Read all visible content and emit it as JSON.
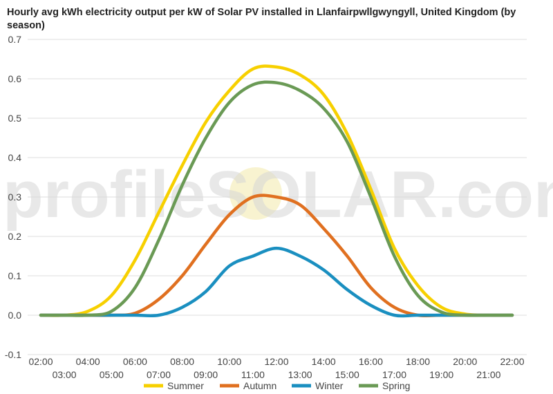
{
  "chart_data": {
    "type": "line",
    "title": "Hourly avg kWh electricity output per kW of Solar PV installed in Llanfairpwllgwyngyll, United Kingdom (by season)",
    "watermark": "profileSOLAR.com",
    "x": [
      "02:00",
      "03:00",
      "04:00",
      "05:00",
      "06:00",
      "07:00",
      "08:00",
      "09:00",
      "10:00",
      "11:00",
      "12:00",
      "13:00",
      "14:00",
      "15:00",
      "16:00",
      "17:00",
      "18:00",
      "19:00",
      "20:00",
      "21:00",
      "22:00"
    ],
    "xlabel": "",
    "ylabel": "",
    "ylim": [
      -0.1,
      0.7
    ],
    "yticks": [
      "-0.1",
      "0.0",
      "0.1",
      "0.2",
      "0.3",
      "0.4",
      "0.5",
      "0.6",
      "0.7"
    ],
    "grid": true,
    "legend_position": "bottom",
    "series": [
      {
        "name": "Summer",
        "color": "#f7d000",
        "values": [
          0.0,
          0.0,
          0.01,
          0.05,
          0.14,
          0.26,
          0.38,
          0.49,
          0.57,
          0.625,
          0.63,
          0.61,
          0.56,
          0.46,
          0.32,
          0.17,
          0.075,
          0.02,
          0.003,
          0.0,
          0.0
        ]
      },
      {
        "name": "Autumn",
        "color": "#e07020",
        "values": [
          0.0,
          0.0,
          0.0,
          0.0,
          0.005,
          0.04,
          0.1,
          0.18,
          0.255,
          0.3,
          0.3,
          0.28,
          0.22,
          0.15,
          0.07,
          0.02,
          0.0,
          0.0,
          0.0,
          0.0,
          0.0
        ]
      },
      {
        "name": "Winter",
        "color": "#1a8fc0",
        "values": [
          0.0,
          0.0,
          0.0,
          0.0,
          0.0,
          0.0,
          0.02,
          0.06,
          0.125,
          0.15,
          0.17,
          0.15,
          0.115,
          0.065,
          0.025,
          0.0,
          0.0,
          0.0,
          0.0,
          0.0,
          0.0
        ]
      },
      {
        "name": "Spring",
        "color": "#6a9a55",
        "values": [
          0.0,
          0.0,
          0.0,
          0.01,
          0.07,
          0.19,
          0.33,
          0.45,
          0.54,
          0.585,
          0.59,
          0.57,
          0.525,
          0.44,
          0.3,
          0.15,
          0.05,
          0.008,
          0.0,
          0.0,
          0.0
        ]
      }
    ]
  }
}
